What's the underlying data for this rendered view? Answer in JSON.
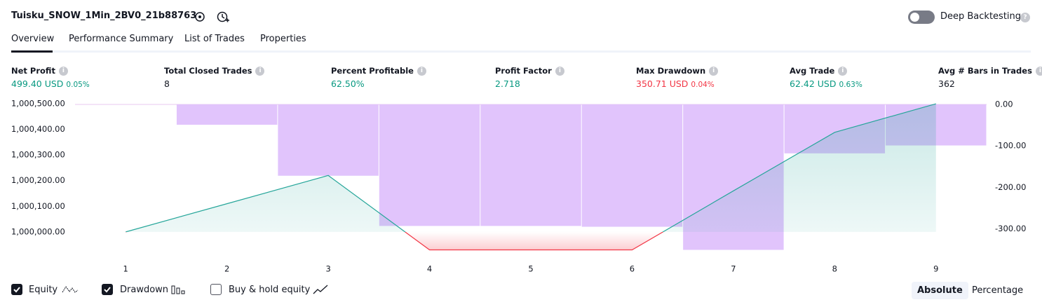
{
  "header": {
    "title": "Tuisku_SNOW_1Min_2BV0_21b88763",
    "deep_backtesting": "Deep Backtesting"
  },
  "tabs": [
    "Overview",
    "Performance Summary",
    "List of Trades",
    "Properties"
  ],
  "metrics": [
    {
      "label": "Net Profit",
      "value": "499.40 USD",
      "percent": "0.05%"
    },
    {
      "label": "Total Closed Trades",
      "value": "8"
    },
    {
      "label": "Percent Profitable",
      "value": "62.50%"
    },
    {
      "label": "Profit Factor",
      "value": "2.718"
    },
    {
      "label": "Max Drawdown",
      "value": "350.71 USD",
      "percent": "0.04%"
    },
    {
      "label": "Avg Trade",
      "value": "62.42 USD",
      "percent": "0.63%"
    },
    {
      "label": "Avg # Bars in Trades",
      "value": "362"
    }
  ],
  "chart_data": {
    "type": "combo",
    "x": [
      1,
      2,
      3,
      4,
      5,
      6,
      7,
      8,
      9
    ],
    "xlim": [
      0.5,
      9.5
    ],
    "xticks": [
      1,
      2,
      3,
      4,
      5,
      6,
      7,
      8,
      9
    ],
    "ylim": [
      999915,
      1000505
    ],
    "yticks": [
      {
        "value": 1000000,
        "label": "1,000,000.00"
      },
      {
        "value": 1000100,
        "label": "1,000,100.00"
      },
      {
        "value": 1000200,
        "label": "1,000,200.00"
      },
      {
        "value": 1000300,
        "label": "1,000,300.00"
      },
      {
        "value": 1000400,
        "label": "1,000,400.00"
      },
      {
        "value": 1000500,
        "label": "1,000,500.00"
      }
    ],
    "y2lim": [
      -360,
      5
    ],
    "y2ticks": [
      {
        "value": 0,
        "label": "0.00"
      },
      {
        "value": -100,
        "label": "-100.00"
      },
      {
        "value": -200,
        "label": "-200.00"
      },
      {
        "value": -300,
        "label": "-300.00"
      }
    ],
    "series": [
      {
        "name": "Equity",
        "type": "line",
        "color": "#26a69a",
        "negative_color": "#f23645",
        "values": [
          1000000,
          1000110,
          1000220,
          999930,
          999930,
          999930,
          1000160,
          1000388,
          1000499.4
        ]
      },
      {
        "name": "Drawdown",
        "type": "bar",
        "axis": "y2",
        "color": "#e1c4fc",
        "values": [
          0,
          -49,
          -172,
          -293,
          -293,
          -295,
          -350.71,
          -118,
          -99
        ]
      }
    ],
    "legend": [
      {
        "name": "Equity",
        "checked": true
      },
      {
        "name": "Drawdown",
        "checked": true
      },
      {
        "name": "Buy & hold equity",
        "checked": false
      }
    ],
    "modes": [
      "Absolute",
      "Percentage"
    ],
    "active_mode": 0
  }
}
